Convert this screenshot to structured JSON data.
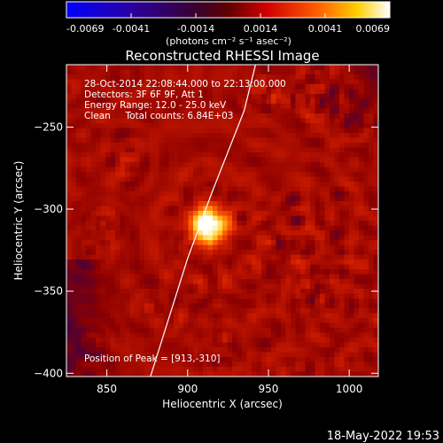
{
  "chart_data": {
    "type": "heatmap",
    "title": "Reconstructed RHESSI Image",
    "xlabel": "Heliocentric X (arcsec)",
    "ylabel": "Heliocentric Y (arcsec)",
    "xlim": [
      825,
      1018
    ],
    "ylim": [
      -402,
      -212
    ],
    "x_ticks": [
      850,
      900,
      950,
      1000
    ],
    "y_ticks": [
      -250,
      -300,
      -350,
      -400
    ],
    "colorbar": {
      "min": -0.0069,
      "max": 0.0069,
      "ticks": [
        "-0.0069",
        "-0.0041",
        "-0.0014",
        "0.0014",
        "0.0041",
        "0.0069"
      ],
      "unit_label": "(photons cm⁻² s⁻¹ asec⁻²)"
    },
    "annotations": {
      "line1": "28-Oct-2014 22:08:44.000 to 22:13:00.000",
      "line2": "Detectors: 3F 6F 9F, Att 1",
      "line3": "Energy Range: 12.0 - 25.0 keV",
      "line4": "Clean     Total counts: 6.84E+03",
      "peak": "Position of Peak = [913,-310]"
    },
    "peak_position": [
      913,
      -310
    ],
    "limb_curve": [
      [
        877,
        -402
      ],
      [
        900,
        -330
      ],
      [
        915,
        -290
      ],
      [
        935,
        -240
      ],
      [
        942,
        -212
      ]
    ],
    "colors": {
      "background": "#000000",
      "low": "#1f00c8",
      "mid": "#c81e1e",
      "high": "#ffffff"
    }
  },
  "footer": {
    "date": "18-May-2022 19:53"
  }
}
